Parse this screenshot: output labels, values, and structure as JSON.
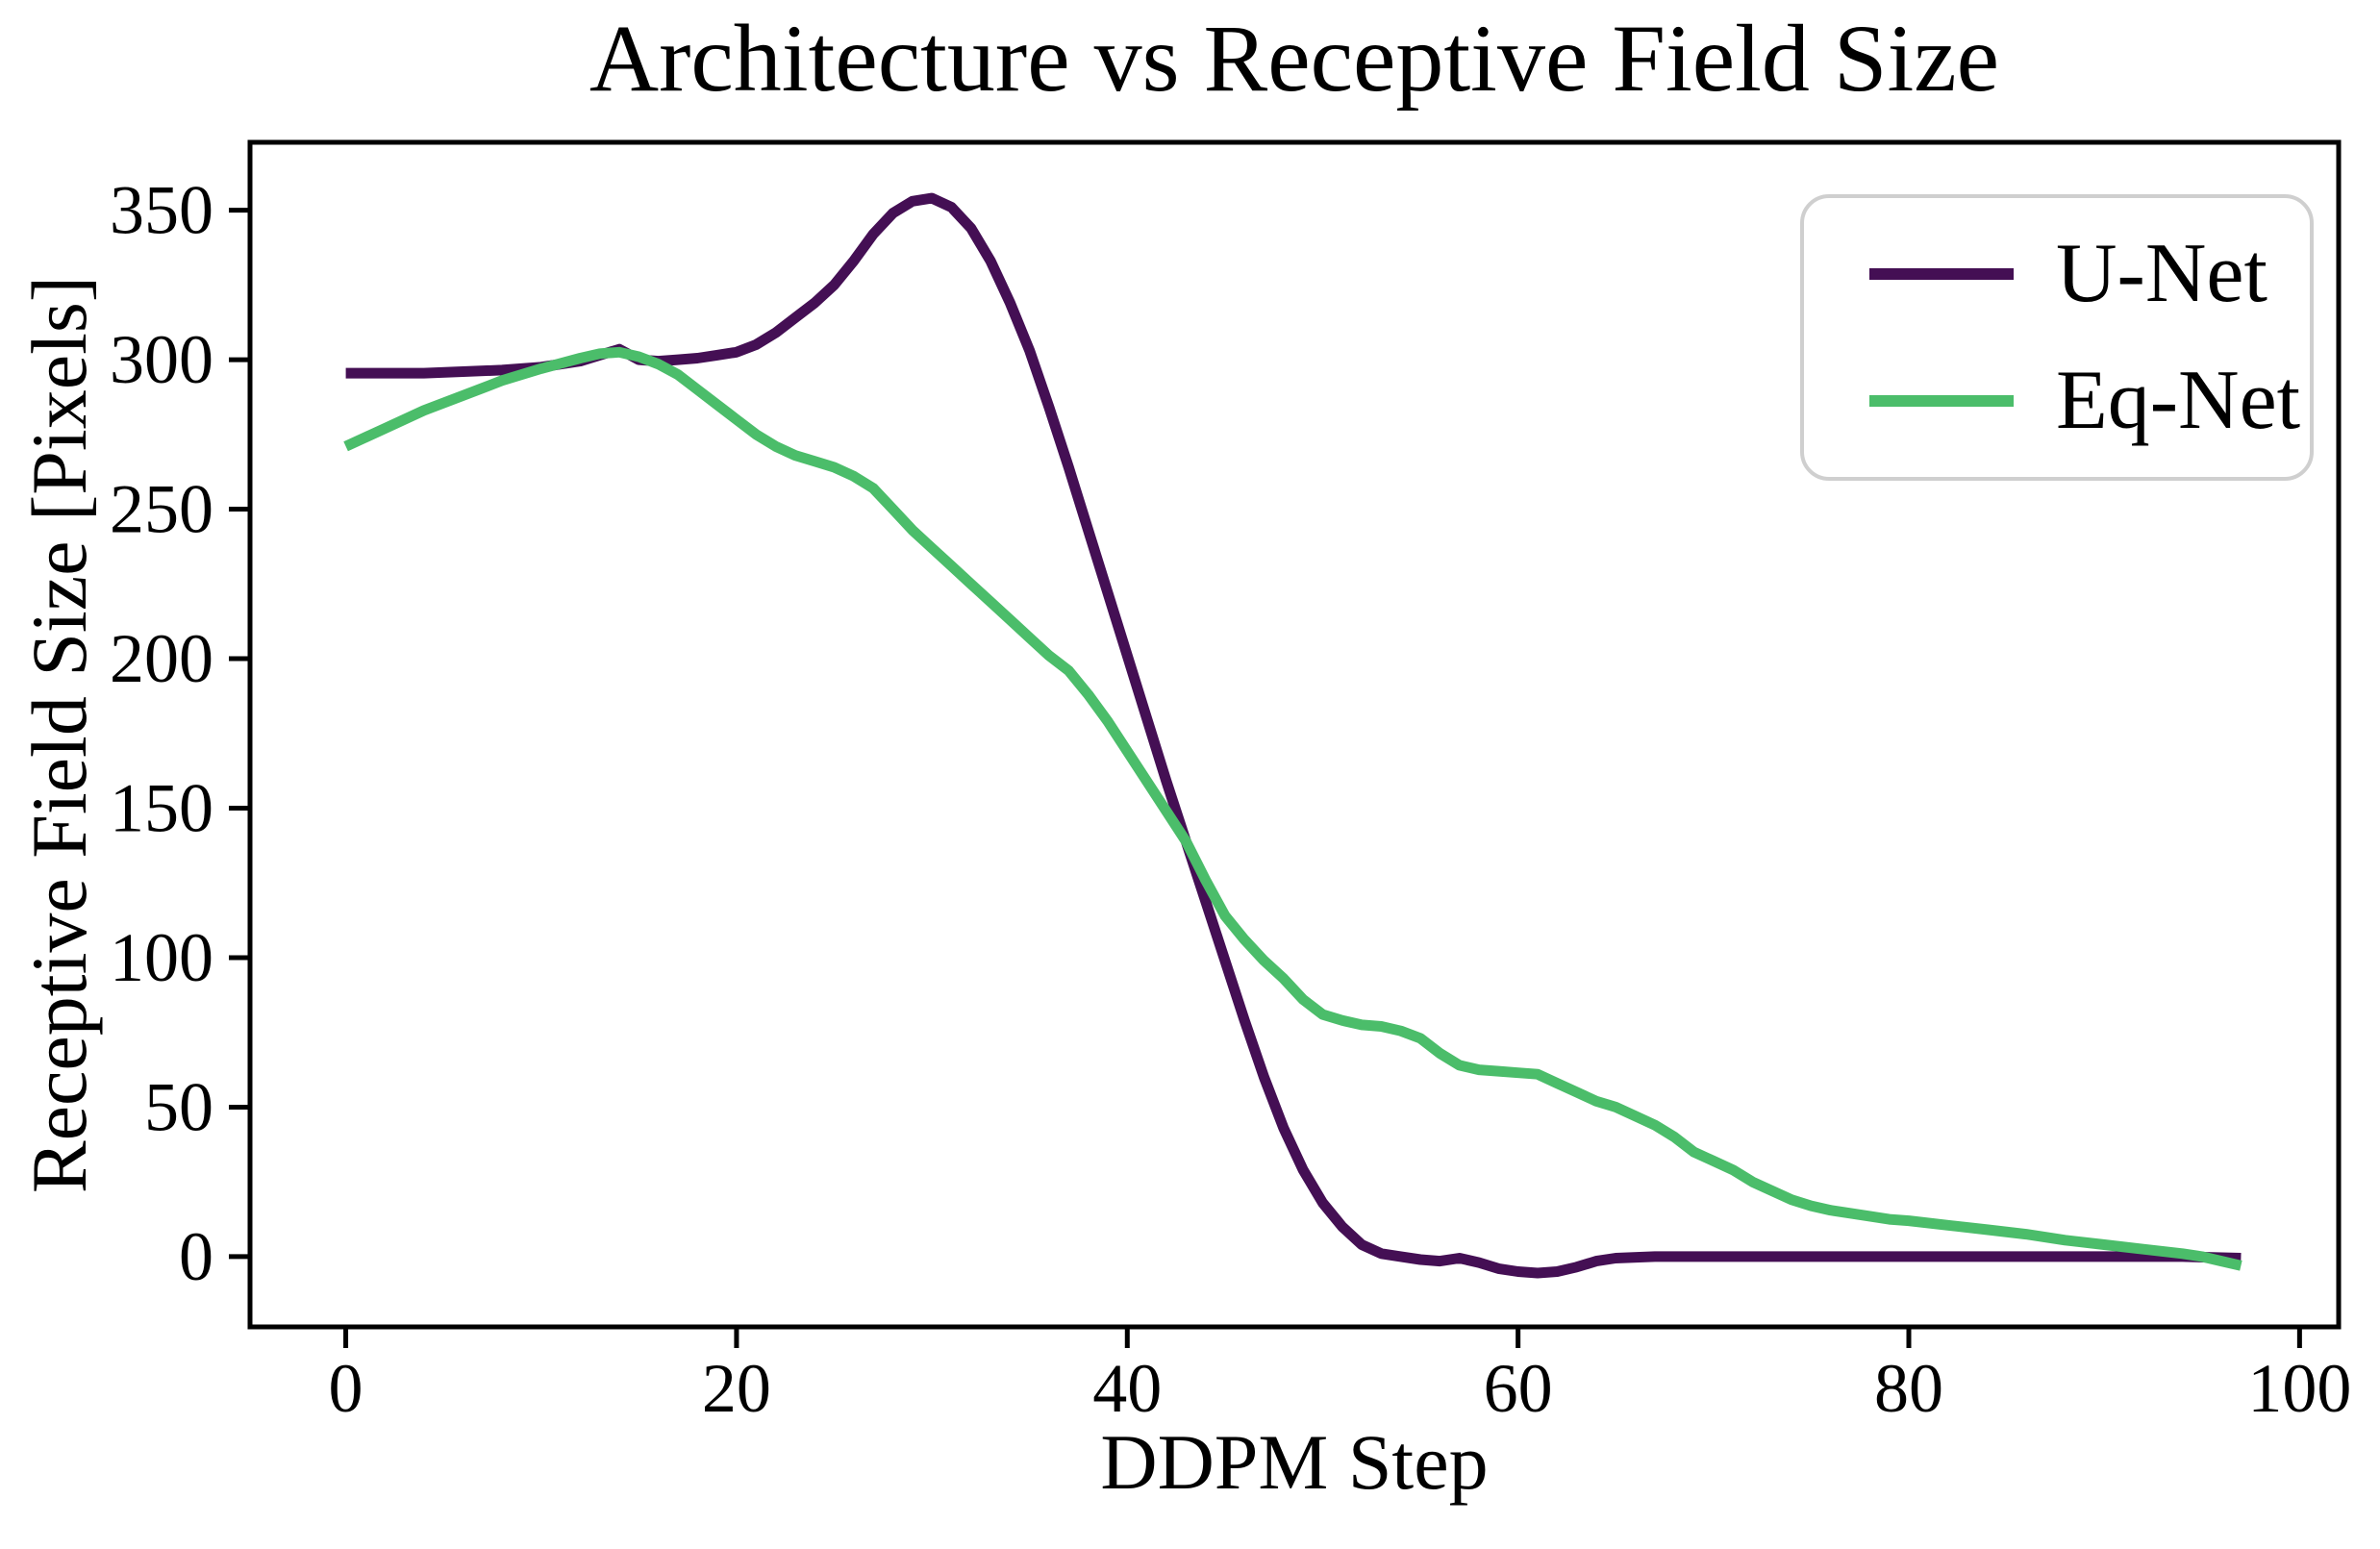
{
  "figure": {
    "title": "Architecture vs Receptive Field Size",
    "x_axis_label": "DDPM Step",
    "y_axis_label": "Receptive Field Size [Pixels]"
  },
  "legend": {
    "position": "upper right",
    "entries": [
      {
        "label": "U-Net",
        "color": "#440f54"
      },
      {
        "label": "Eq-Net",
        "color": "#4bbd6a"
      }
    ]
  },
  "chart_data": {
    "type": "line",
    "title": "Architecture vs Receptive Field Size",
    "xlabel": "DDPM Step",
    "ylabel": "Receptive Field Size [Pixels]",
    "xlim": [
      -4.9,
      102
    ],
    "ylim": [
      -23.5,
      372.7
    ],
    "xticks": [
      0,
      20,
      40,
      60,
      80,
      100
    ],
    "yticks": [
      0,
      50,
      100,
      150,
      200,
      250,
      300,
      350
    ],
    "grid": false,
    "legend_position": "upper right",
    "axis_color": "#000000",
    "line_width": 11,
    "series": [
      {
        "name": "U-Net",
        "color": "#440f54",
        "x": [
          0,
          2,
          4,
          6,
          8,
          10,
          12,
          13,
          14,
          15,
          16,
          17,
          18,
          19,
          20,
          21,
          22,
          23,
          24,
          25,
          26,
          27,
          28,
          29,
          30,
          31,
          32,
          33,
          34,
          35,
          36,
          37,
          38,
          39,
          40,
          41,
          42,
          43,
          44,
          45,
          46,
          47,
          48,
          49,
          50,
          51,
          52,
          53,
          54,
          55,
          56,
          57,
          58,
          59,
          60,
          61,
          62,
          63,
          64,
          65,
          67,
          70,
          75,
          80,
          85,
          90,
          94,
          97
        ],
        "y": [
          295.5,
          295.5,
          295.5,
          296,
          296.5,
          297.5,
          299.5,
          301.5,
          303.5,
          300,
          299.5,
          300,
          300.5,
          301.5,
          302.5,
          305,
          309,
          314,
          319,
          325,
          333,
          342,
          349,
          353,
          354,
          351,
          344,
          333,
          319,
          303,
          284,
          264,
          243,
          222,
          201,
          180,
          159,
          139,
          119,
          99,
          79,
          60,
          43,
          29,
          18,
          10,
          4,
          1,
          0,
          -1,
          -1.5,
          -0.5,
          -2,
          -4,
          -5,
          -5.5,
          -5,
          -3.5,
          -1.5,
          -0.5,
          0,
          0,
          0,
          0,
          0,
          0,
          0,
          -0.5
        ]
      },
      {
        "name": "Eq-Net",
        "color": "#4bbd6a",
        "x": [
          0,
          2,
          4,
          6,
          8,
          10,
          12,
          13,
          14,
          15,
          16,
          17,
          18,
          19,
          20,
          21,
          22,
          23,
          24,
          25,
          26,
          27,
          28,
          29,
          30,
          31,
          32,
          33,
          34,
          35,
          36,
          37,
          38,
          39,
          40,
          41,
          42,
          43,
          44,
          45,
          46,
          47,
          48,
          49,
          50,
          51,
          52,
          53,
          54,
          55,
          56,
          57,
          58,
          59,
          60,
          61,
          62,
          63,
          64,
          65,
          66,
          67,
          68,
          69,
          70,
          71,
          72,
          73,
          74,
          75,
          76,
          77,
          78,
          79,
          80,
          82,
          84,
          86,
          88,
          90,
          92,
          94,
          95,
          96,
          97
        ],
        "y": [
          271,
          277,
          283,
          288,
          293,
          297,
          300.5,
          302,
          302.5,
          301,
          298.5,
          295,
          290,
          285,
          280,
          275,
          271,
          268,
          266,
          264,
          261,
          257,
          250,
          243,
          237,
          231,
          225,
          219,
          213,
          207,
          201,
          196,
          188,
          179,
          169,
          159,
          149,
          139,
          126,
          114,
          106,
          99,
          93,
          86,
          81,
          79,
          77.5,
          77,
          75.5,
          73,
          68,
          64,
          62.5,
          62,
          61.5,
          61,
          58,
          55,
          52,
          50,
          47,
          44,
          40,
          35,
          32,
          29,
          25,
          22,
          19,
          17,
          15.5,
          14.5,
          13.5,
          12.5,
          12,
          10.5,
          9,
          7.5,
          5.5,
          4,
          2.5,
          1,
          0,
          -1.5,
          -3
        ]
      }
    ]
  }
}
